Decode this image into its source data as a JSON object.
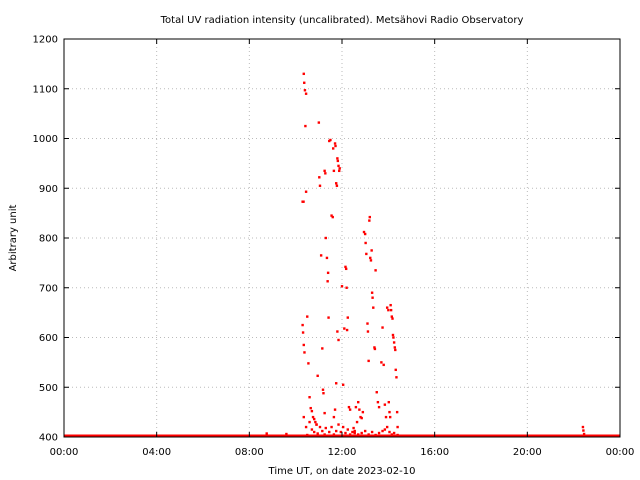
{
  "chart_data": {
    "type": "scatter",
    "title": "Total UV radiation intensity (uncalibrated). Metsähovi Radio Observatory",
    "xlabel": "Time UT, on date 2023-02-10",
    "ylabel": "Arbitrary unit",
    "xlim": [
      0,
      24
    ],
    "ylim": [
      400,
      1200
    ],
    "x_ticks": [
      {
        "value": 0,
        "label": "00:00"
      },
      {
        "value": 4,
        "label": "04:00"
      },
      {
        "value": 8,
        "label": "08:00"
      },
      {
        "value": 12,
        "label": "12:00"
      },
      {
        "value": 16,
        "label": "16:00"
      },
      {
        "value": 20,
        "label": "20:00"
      },
      {
        "value": 24,
        "label": "00:00"
      }
    ],
    "y_ticks": [
      {
        "value": 400,
        "label": "400"
      },
      {
        "value": 500,
        "label": "500"
      },
      {
        "value": 600,
        "label": "600"
      },
      {
        "value": 700,
        "label": "700"
      },
      {
        "value": 800,
        "label": "800"
      },
      {
        "value": 900,
        "label": "900"
      },
      {
        "value": 1000,
        "label": "1000"
      },
      {
        "value": 1100,
        "label": "1100"
      },
      {
        "value": 1200,
        "label": "1200"
      }
    ],
    "grid": true,
    "point_color": "#ff0000",
    "baseline": {
      "y": 400,
      "x_from": 0,
      "x_to": 24
    },
    "points": [
      [
        8.75,
        407
      ],
      [
        9.6,
        406
      ],
      [
        10.35,
        440
      ],
      [
        10.45,
        420
      ],
      [
        10.5,
        404
      ],
      [
        10.6,
        430
      ],
      [
        10.7,
        415
      ],
      [
        10.8,
        410
      ],
      [
        10.9,
        425
      ],
      [
        10.95,
        407
      ],
      [
        11.05,
        420
      ],
      [
        11.15,
        412
      ],
      [
        11.25,
        405
      ],
      [
        11.3,
        418
      ],
      [
        11.45,
        410
      ],
      [
        11.55,
        420
      ],
      [
        11.65,
        405
      ],
      [
        11.75,
        412
      ],
      [
        11.85,
        425
      ],
      [
        11.95,
        410
      ],
      [
        12.05,
        420
      ],
      [
        12.15,
        408
      ],
      [
        12.25,
        415
      ],
      [
        12.35,
        405
      ],
      [
        12.45,
        410
      ],
      [
        12.55,
        412
      ],
      [
        12.7,
        405
      ],
      [
        12.85,
        408
      ],
      [
        13.0,
        412
      ],
      [
        13.15,
        405
      ],
      [
        13.3,
        410
      ],
      [
        13.45,
        404
      ],
      [
        13.6,
        408
      ],
      [
        13.75,
        412
      ],
      [
        13.85,
        415
      ],
      [
        13.95,
        420
      ],
      [
        14.05,
        410
      ],
      [
        14.15,
        405
      ],
      [
        14.25,
        408
      ],
      [
        14.4,
        404
      ],
      [
        10.35,
        1130
      ],
      [
        10.37,
        1112
      ],
      [
        10.4,
        1097
      ],
      [
        10.45,
        1090
      ],
      [
        10.42,
        1025
      ],
      [
        10.3,
        873
      ],
      [
        10.34,
        873
      ],
      [
        10.45,
        893
      ],
      [
        10.3,
        625
      ],
      [
        10.32,
        610
      ],
      [
        10.35,
        585
      ],
      [
        10.38,
        570
      ],
      [
        10.5,
        642
      ],
      [
        10.55,
        548
      ],
      [
        10.6,
        480
      ],
      [
        10.65,
        458
      ],
      [
        10.7,
        452
      ],
      [
        10.75,
        440
      ],
      [
        10.8,
        436
      ],
      [
        10.85,
        430
      ],
      [
        10.9,
        425
      ],
      [
        10.95,
        523
      ],
      [
        11.0,
        1032
      ],
      [
        11.02,
        922
      ],
      [
        11.05,
        905
      ],
      [
        11.1,
        765
      ],
      [
        11.15,
        578
      ],
      [
        11.18,
        495
      ],
      [
        11.2,
        488
      ],
      [
        11.25,
        448
      ],
      [
        11.25,
        935
      ],
      [
        11.28,
        930
      ],
      [
        11.3,
        800
      ],
      [
        11.35,
        760
      ],
      [
        11.38,
        713
      ],
      [
        11.4,
        730
      ],
      [
        11.42,
        640
      ],
      [
        11.45,
        995
      ],
      [
        11.5,
        997
      ],
      [
        11.55,
        845
      ],
      [
        11.6,
        842
      ],
      [
        11.62,
        980
      ],
      [
        11.65,
        935
      ],
      [
        11.7,
        990
      ],
      [
        11.72,
        985
      ],
      [
        11.75,
        910
      ],
      [
        11.78,
        905
      ],
      [
        11.8,
        960
      ],
      [
        11.82,
        955
      ],
      [
        11.85,
        945
      ],
      [
        11.9,
        940
      ],
      [
        11.88,
        935
      ],
      [
        11.8,
        612
      ],
      [
        11.85,
        595
      ],
      [
        11.75,
        508
      ],
      [
        11.7,
        455
      ],
      [
        11.65,
        440
      ],
      [
        12.0,
        703
      ],
      [
        12.05,
        505
      ],
      [
        12.1,
        618
      ],
      [
        12.15,
        742
      ],
      [
        12.18,
        738
      ],
      [
        12.2,
        700
      ],
      [
        12.22,
        615
      ],
      [
        12.25,
        640
      ],
      [
        12.3,
        460
      ],
      [
        12.35,
        455
      ],
      [
        12.5,
        418
      ],
      [
        12.55,
        408
      ],
      [
        12.6,
        460
      ],
      [
        12.65,
        430
      ],
      [
        12.7,
        470
      ],
      [
        12.75,
        455
      ],
      [
        12.8,
        440
      ],
      [
        12.85,
        438
      ],
      [
        12.9,
        450
      ],
      [
        12.95,
        812
      ],
      [
        13.0,
        808
      ],
      [
        13.02,
        790
      ],
      [
        13.05,
        768
      ],
      [
        13.1,
        628
      ],
      [
        13.12,
        612
      ],
      [
        13.15,
        553
      ],
      [
        13.18,
        835
      ],
      [
        13.2,
        842
      ],
      [
        13.22,
        760
      ],
      [
        13.25,
        755
      ],
      [
        13.28,
        775
      ],
      [
        13.3,
        690
      ],
      [
        13.32,
        680
      ],
      [
        13.35,
        660
      ],
      [
        13.4,
        580
      ],
      [
        13.42,
        577
      ],
      [
        13.45,
        735
      ],
      [
        13.5,
        490
      ],
      [
        13.55,
        470
      ],
      [
        13.6,
        460
      ],
      [
        13.7,
        550
      ],
      [
        13.75,
        620
      ],
      [
        13.8,
        545
      ],
      [
        13.85,
        465
      ],
      [
        13.9,
        440
      ],
      [
        13.95,
        660
      ],
      [
        14.0,
        655
      ],
      [
        14.02,
        470
      ],
      [
        14.05,
        450
      ],
      [
        14.08,
        440
      ],
      [
        14.1,
        665
      ],
      [
        14.12,
        655
      ],
      [
        14.15,
        642
      ],
      [
        14.18,
        638
      ],
      [
        14.2,
        605
      ],
      [
        14.22,
        600
      ],
      [
        14.25,
        590
      ],
      [
        14.28,
        580
      ],
      [
        14.3,
        575
      ],
      [
        14.32,
        535
      ],
      [
        14.35,
        520
      ],
      [
        14.38,
        450
      ],
      [
        14.4,
        420
      ],
      [
        22.4,
        420
      ],
      [
        22.42,
        413
      ],
      [
        22.45,
        406
      ],
      [
        22.48,
        402
      ]
    ]
  }
}
